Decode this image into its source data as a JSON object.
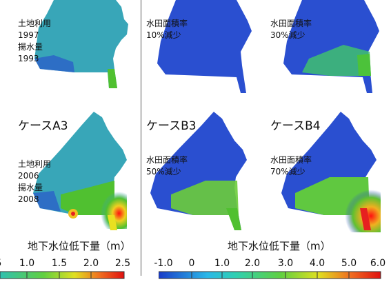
{
  "panels": [
    {
      "id": "top-left",
      "case": "",
      "lines": [
        "土地利用",
        "1997",
        "揚水量",
        "1993"
      ]
    },
    {
      "id": "top-b1",
      "case": "",
      "lines": [
        "水田面積率",
        "10%減少"
      ]
    },
    {
      "id": "top-b2",
      "case": "",
      "lines": [
        "水田面積率",
        "30%減少"
      ]
    },
    {
      "id": "a3",
      "case": "ケースA3",
      "lines": [
        "土地利用",
        "2006",
        "揚水量",
        "2008"
      ]
    },
    {
      "id": "b3",
      "case": "ケースB3",
      "lines": [
        "水田面積率",
        "50%減少"
      ]
    },
    {
      "id": "b4",
      "case": "ケースB4",
      "lines": [
        "水田面積率",
        "70%減少"
      ]
    }
  ],
  "legend_left": {
    "title": "地下水位低下量（m）",
    "ticks": [
      "5",
      "1.0",
      "1.5",
      "2.0",
      "2.5"
    ]
  },
  "legend_right": {
    "title": "地下水位低下量（m）",
    "ticks": [
      "-1.0",
      "0",
      "1.0",
      "2.0",
      "3.0",
      "4.0",
      "5.0",
      "6.0"
    ]
  },
  "colors": {
    "blue": "#2a4fd0",
    "cyan": "#2ab8c8",
    "green": "#4cc23a",
    "yellow": "#e8e020",
    "red": "#e62020"
  }
}
